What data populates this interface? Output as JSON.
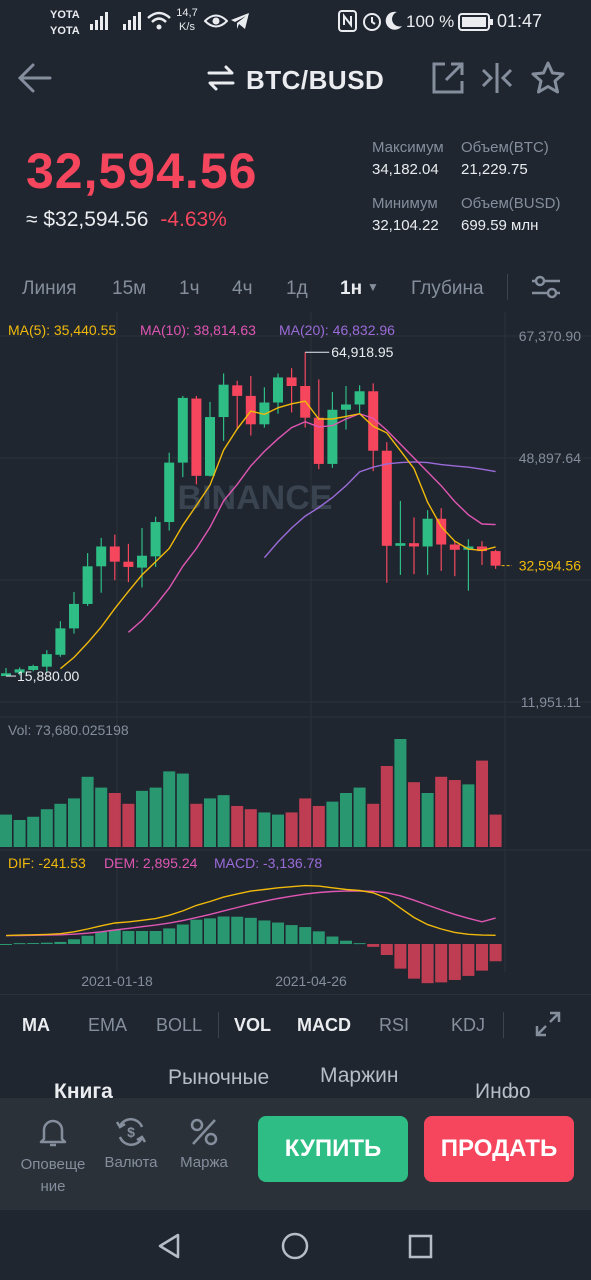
{
  "status": {
    "carrier1": "YOTA",
    "carrier2": "YOTA",
    "net_speed": "14,7",
    "net_unit": "K/s",
    "battery": "100 %",
    "time": "01:47"
  },
  "header": {
    "pair": "BTC/BUSD"
  },
  "ticker": {
    "last_price": "32,594.56",
    "approx_label": "≈ $32,594.56",
    "change": "-4.63%",
    "high_label": "Максимум",
    "high_value": "34,182.04",
    "vol_btc_label": "Объем(BTC)",
    "vol_btc_value": "21,229.75",
    "low_label": "Минимум",
    "low_value": "32,104.22",
    "vol_busd_label": "Объем(BUSD)",
    "vol_busd_value": "699.59 млн"
  },
  "timeframes": [
    {
      "label": "Линия"
    },
    {
      "label": "15м"
    },
    {
      "label": "1ч"
    },
    {
      "label": "4ч"
    },
    {
      "label": "1д"
    },
    {
      "label": "1н"
    },
    {
      "label": "Глубина"
    }
  ],
  "chart_labels": {
    "ma5": "MA(5): 35,440.55",
    "ma10": "MA(10): 38,814.63",
    "ma20": "MA(20): 46,832.96",
    "axis_top": "67,370.90",
    "axis_mid": "48,897.64",
    "axis_bottom": "11,951.11",
    "current_price": "32,594.56",
    "high_marker": "64,918.95",
    "low_marker": "15,880.00",
    "watermark": "BINANCE",
    "vol": "Vol: 73,680.025198",
    "dif": "DIF: -241.53",
    "dem": "DEM: 2,895.24",
    "macd": "MACD: -3,136.78",
    "date1": "2021-01-18",
    "date2": "2021-04-26"
  },
  "colors": {
    "up": "#2ebd85",
    "down": "#f6465d",
    "ma5": "#f0b90b",
    "ma10": "#e056b3",
    "ma20": "#9b6bd8"
  },
  "indicators": [
    {
      "label": "MA"
    },
    {
      "label": "EMA"
    },
    {
      "label": "BOLL"
    },
    {
      "label": "VOL"
    },
    {
      "label": "MACD"
    },
    {
      "label": "RSI"
    },
    {
      "label": "KDJ"
    }
  ],
  "section_tabs": [
    {
      "label": "Книга"
    },
    {
      "label": "Рыночные"
    },
    {
      "label": "Маржин"
    },
    {
      "label": "Инфо"
    }
  ],
  "bottom": {
    "alerts_label_1": "Оповеще",
    "alerts_label_2": "ние",
    "currency_label": "Валюта",
    "margin_label": "Маржа",
    "buy_label": "КУПИТЬ",
    "sell_label": "ПРОДАТЬ"
  },
  "icons": [
    "back-arrow-icon",
    "swap-icon",
    "share-icon",
    "compare-icon",
    "star-icon",
    "settings-sliders-icon",
    "expand-icon",
    "bell-icon",
    "currency-icon",
    "percent-icon",
    "nav-back-icon",
    "nav-home-icon",
    "nav-recent-icon"
  ],
  "chart_data": {
    "type": "candlestick",
    "interval": "1н",
    "ylim": [
      11951.11,
      67370.9
    ],
    "candles": [
      {
        "o": 15880,
        "c": 16300,
        "h": 17100,
        "l": 15880
      },
      {
        "o": 16400,
        "c": 16900,
        "h": 17200,
        "l": 16000
      },
      {
        "o": 16800,
        "c": 17400,
        "h": 17600,
        "l": 16600
      },
      {
        "o": 17300,
        "c": 19200,
        "h": 19800,
        "l": 16500
      },
      {
        "o": 19100,
        "c": 23100,
        "h": 24200,
        "l": 18800
      },
      {
        "o": 23100,
        "c": 26800,
        "h": 28600,
        "l": 22300
      },
      {
        "o": 26800,
        "c": 32500,
        "h": 34500,
        "l": 26500
      },
      {
        "o": 32500,
        "c": 35500,
        "h": 36800,
        "l": 28500
      },
      {
        "o": 35500,
        "c": 33200,
        "h": 37300,
        "l": 30400
      },
      {
        "o": 33200,
        "c": 32400,
        "h": 35900,
        "l": 30100
      },
      {
        "o": 32300,
        "c": 34100,
        "h": 38300,
        "l": 29300
      },
      {
        "o": 34000,
        "c": 39200,
        "h": 40000,
        "l": 32400
      },
      {
        "o": 39200,
        "c": 48200,
        "h": 49700,
        "l": 37900
      },
      {
        "o": 48200,
        "c": 58000,
        "h": 58300,
        "l": 46000
      },
      {
        "o": 57900,
        "c": 46200,
        "h": 58300,
        "l": 44900
      },
      {
        "o": 46200,
        "c": 55100,
        "h": 57400,
        "l": 46100
      },
      {
        "o": 55100,
        "c": 60000,
        "h": 61700,
        "l": 51500
      },
      {
        "o": 59900,
        "c": 58300,
        "h": 60600,
        "l": 53200
      },
      {
        "o": 58300,
        "c": 54000,
        "h": 61300,
        "l": 52300
      },
      {
        "o": 54000,
        "c": 57300,
        "h": 59600,
        "l": 53500
      },
      {
        "o": 57300,
        "c": 61100,
        "h": 61700,
        "l": 55600
      },
      {
        "o": 61100,
        "c": 59800,
        "h": 62500,
        "l": 55800
      },
      {
        "o": 59800,
        "c": 55000,
        "h": 64918.95,
        "l": 53500
      },
      {
        "o": 55000,
        "c": 48000,
        "h": 60800,
        "l": 47200
      },
      {
        "o": 48000,
        "c": 56200,
        "h": 58900,
        "l": 47400
      },
      {
        "o": 56200,
        "c": 57000,
        "h": 59800,
        "l": 53200
      },
      {
        "o": 57000,
        "c": 59000,
        "h": 59900,
        "l": 55600
      },
      {
        "o": 59000,
        "c": 50000,
        "h": 60200,
        "l": 46900
      },
      {
        "o": 50000,
        "c": 35600,
        "h": 51300,
        "l": 30000
      },
      {
        "o": 35600,
        "c": 36000,
        "h": 42400,
        "l": 31200
      },
      {
        "o": 36000,
        "c": 35500,
        "h": 39900,
        "l": 31300
      },
      {
        "o": 35500,
        "c": 39700,
        "h": 41000,
        "l": 31200
      },
      {
        "o": 39700,
        "c": 35800,
        "h": 41300,
        "l": 31800
      },
      {
        "o": 35800,
        "c": 35000,
        "h": 36400,
        "l": 31000
      },
      {
        "o": 35000,
        "c": 35500,
        "h": 36600,
        "l": 28800
      },
      {
        "o": 35500,
        "c": 34800,
        "h": 36300,
        "l": 32700
      },
      {
        "o": 34800,
        "c": 32594.56,
        "h": 35000,
        "l": 32104.22
      }
    ],
    "ma5": [
      null,
      null,
      null,
      null,
      17000,
      18700,
      20900,
      23300,
      26100,
      28700,
      31200,
      33200,
      35200,
      38700,
      41700,
      44800,
      50100,
      53300,
      56000,
      55500,
      56500,
      57100,
      57500,
      54800,
      54800,
      55200,
      55600,
      53700,
      52700,
      50000,
      47300,
      42200,
      38500,
      36300,
      35100,
      34900,
      35440.55
    ],
    "ma10": [
      null,
      null,
      null,
      null,
      null,
      null,
      null,
      null,
      null,
      22500,
      24300,
      26600,
      29200,
      32500,
      35200,
      38400,
      42400,
      44900,
      47700,
      49900,
      51800,
      53500,
      54400,
      53600,
      53800,
      54800,
      55600,
      54900,
      53100,
      51000,
      48900,
      46800,
      44700,
      42300,
      40300,
      38900,
      38814.63
    ],
    "ma20": [
      null,
      null,
      null,
      null,
      null,
      null,
      null,
      null,
      null,
      null,
      null,
      null,
      null,
      null,
      null,
      null,
      null,
      null,
      null,
      33800,
      36200,
      38300,
      40100,
      41400,
      42900,
      44700,
      46800,
      47500,
      48000,
      48200,
      48300,
      48200,
      47900,
      47700,
      47500,
      47200,
      46832.96
    ],
    "volume": [
      30,
      25,
      28,
      35,
      40,
      45,
      65,
      55,
      50,
      40,
      52,
      55,
      70,
      68,
      40,
      45,
      48,
      38,
      35,
      32,
      30,
      32,
      45,
      38,
      42,
      50,
      55,
      40,
      75,
      100,
      60,
      50,
      65,
      62,
      58,
      80,
      30
    ],
    "dif": [
      -300,
      -200,
      -150,
      -80,
      50,
      400,
      900,
      1500,
      2000,
      2200,
      2500,
      2800,
      3400,
      4200,
      5200,
      5900,
      6700,
      7300,
      7800,
      8100,
      8400,
      8600,
      8800,
      8700,
      8400,
      8100,
      7900,
      7500,
      6500,
      4700,
      3000,
      1700,
      900,
      300,
      -50,
      -200,
      -241.53
    ],
    "dem": [
      -300,
      -280,
      -240,
      -200,
      -140,
      -30,
      150,
      400,
      720,
      1020,
      1320,
      1620,
      1980,
      2430,
      2990,
      3570,
      4200,
      4820,
      5420,
      5960,
      6450,
      6880,
      7260,
      7550,
      7720,
      7800,
      7820,
      7760,
      7500,
      6940,
      6150,
      5260,
      4390,
      3570,
      2850,
      2220,
      2895.24
    ],
    "macd": [
      0,
      160,
      180,
      240,
      380,
      860,
      1500,
      2200,
      2560,
      2360,
      2360,
      2360,
      2840,
      3540,
      4420,
      4660,
      5000,
      4960,
      4760,
      4280,
      3900,
      3440,
      3080,
      2300,
      1360,
      600,
      160,
      -520,
      -2000,
      -4480,
      -6300,
      -7120,
      -6980,
      -6540,
      -5800,
      -4840,
      -3136.78
    ],
    "x_labels": [
      "2021-01-18",
      "2021-04-26"
    ]
  }
}
